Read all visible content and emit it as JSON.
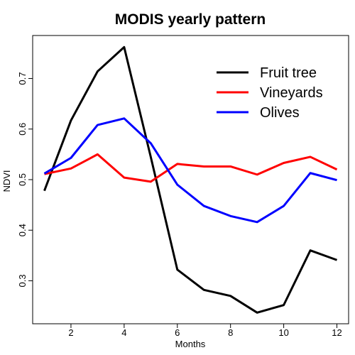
{
  "chart_data": {
    "type": "line",
    "title": "MODIS yearly pattern",
    "xlabel": "Months",
    "ylabel": "NDVI",
    "x": [
      1,
      2,
      3,
      4,
      5,
      6,
      7,
      8,
      9,
      10,
      11,
      12
    ],
    "x_ticks": [
      2,
      4,
      6,
      8,
      10,
      12
    ],
    "y_ticks": [
      0.3,
      0.4,
      0.5,
      0.6,
      0.7
    ],
    "xlim": [
      0.56,
      12.44
    ],
    "ylim": [
      0.215,
      0.785
    ],
    "grid": false,
    "legend_position": "top-right",
    "series": [
      {
        "name": "Fruit tree",
        "color": "#000000",
        "values": [
          0.478,
          0.617,
          0.714,
          0.762,
          0.545,
          0.322,
          0.282,
          0.27,
          0.237,
          0.252,
          0.36,
          0.341
        ]
      },
      {
        "name": "Vineyards",
        "color": "#ff0000",
        "values": [
          0.511,
          0.522,
          0.55,
          0.504,
          0.496,
          0.531,
          0.526,
          0.526,
          0.51,
          0.533,
          0.545,
          0.52
        ]
      },
      {
        "name": "Olives",
        "color": "#0000ff",
        "values": [
          0.512,
          0.543,
          0.608,
          0.621,
          0.572,
          0.49,
          0.448,
          0.428,
          0.416,
          0.448,
          0.513,
          0.499
        ]
      }
    ]
  }
}
